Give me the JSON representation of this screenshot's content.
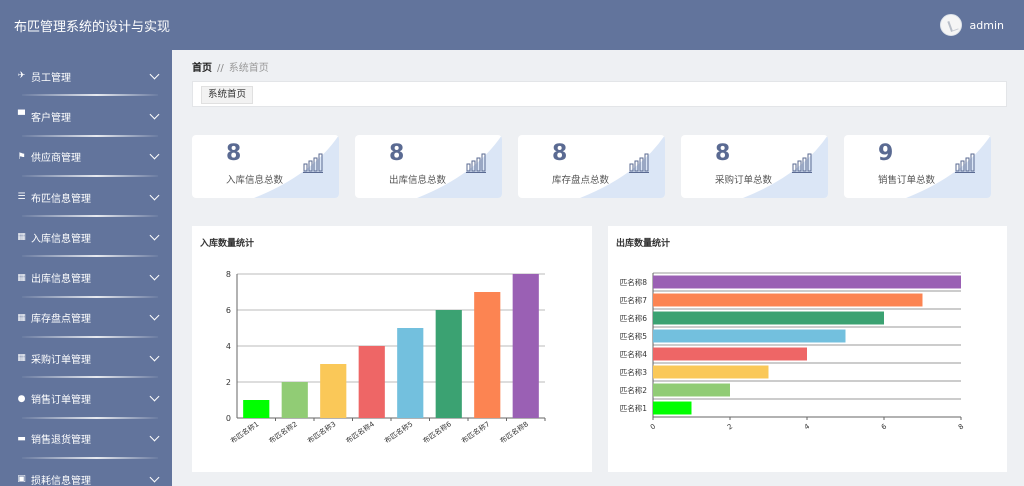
{
  "header": {
    "title": "布匹管理系统的设计与实现",
    "username": "admin"
  },
  "sidebar": {
    "items": [
      {
        "label": "员工管理",
        "icon": "paper-plane-icon",
        "glyph": "✈"
      },
      {
        "label": "客户管理",
        "icon": "comment-icon",
        "glyph": "▀"
      },
      {
        "label": "供应商管理",
        "icon": "flag-icon",
        "glyph": "⚑"
      },
      {
        "label": "布匹信息管理",
        "icon": "list-icon",
        "glyph": "☰"
      },
      {
        "label": "入库信息管理",
        "icon": "grid-icon",
        "glyph": "▦"
      },
      {
        "label": "出库信息管理",
        "icon": "grid-icon",
        "glyph": "▦"
      },
      {
        "label": "库存盘点管理",
        "icon": "grid-icon",
        "glyph": "▦"
      },
      {
        "label": "采购订单管理",
        "icon": "grid-icon",
        "glyph": "▦"
      },
      {
        "label": "销售订单管理",
        "icon": "location-icon",
        "glyph": "●"
      },
      {
        "label": "销售退货管理",
        "icon": "monitor-icon",
        "glyph": "▬"
      },
      {
        "label": "损耗信息管理",
        "icon": "chart-icon",
        "glyph": "▣"
      }
    ]
  },
  "breadcrumb": {
    "home": "首页",
    "separator": "//",
    "current": "系统首页"
  },
  "tabs": [
    {
      "label": "系统首页"
    }
  ],
  "stats": [
    {
      "value": "8",
      "label": "入库信息总数"
    },
    {
      "value": "8",
      "label": "出库信息总数"
    },
    {
      "value": "8",
      "label": "库存盘点总数"
    },
    {
      "value": "8",
      "label": "采购订单总数"
    },
    {
      "value": "9",
      "label": "销售订单总数"
    }
  ],
  "chart_data": [
    {
      "type": "bar",
      "title": "入库数量统计",
      "categories": [
        "布匹名称1",
        "布匹名称2",
        "布匹名称3",
        "布匹名称4",
        "布匹名称5",
        "布匹名称6",
        "布匹名称7",
        "布匹名称8"
      ],
      "values": [
        1,
        2,
        3,
        4,
        5,
        6,
        7,
        8
      ],
      "colors": [
        "#00ff00",
        "#91cc75",
        "#fac858",
        "#ee6666",
        "#73c0de",
        "#3ba272",
        "#fc8452",
        "#9a60b4"
      ],
      "ylim": [
        0,
        8
      ],
      "yticks": [
        0,
        2,
        4,
        6,
        8
      ],
      "grid": true
    },
    {
      "type": "bar",
      "orientation": "horizontal",
      "title": "出库数量统计",
      "categories": [
        "匹名称1",
        "匹名称2",
        "匹名称3",
        "匹名称4",
        "匹名称5",
        "匹名称6",
        "匹名称7",
        "匹名称8"
      ],
      "values": [
        1,
        2,
        3,
        4,
        5,
        6,
        7,
        8
      ],
      "colors": [
        "#00ff00",
        "#91cc75",
        "#fac858",
        "#ee6666",
        "#73c0de",
        "#3ba272",
        "#fc8452",
        "#9a60b4"
      ],
      "xlim": [
        0,
        8
      ],
      "xticks": [
        0,
        2,
        4,
        6,
        8
      ],
      "grid": true
    }
  ]
}
